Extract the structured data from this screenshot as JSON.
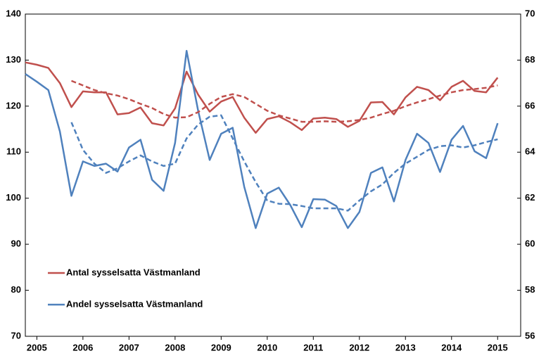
{
  "chart_data": {
    "type": "line",
    "x": [
      2004.75,
      2005,
      2005.25,
      2005.5,
      2005.75,
      2006,
      2006.25,
      2006.5,
      2006.75,
      2007,
      2007.25,
      2007.5,
      2007.75,
      2008,
      2008.25,
      2008.5,
      2008.75,
      2009,
      2009.25,
      2009.5,
      2009.75,
      2010,
      2010.25,
      2010.5,
      2010.75,
      2011,
      2011.25,
      2011.5,
      2011.75,
      2012,
      2012.25,
      2012.5,
      2012.75,
      2013,
      2013.25,
      2013.5,
      2013.75,
      2014,
      2014.25,
      2014.5,
      2014.75,
      2015
    ],
    "xlim": [
      2004.75,
      2015.5
    ],
    "xticks": [
      2005,
      2006,
      2007,
      2008,
      2009,
      2010,
      2011,
      2012,
      2013,
      2014,
      2015
    ],
    "ylim": [
      70,
      140
    ],
    "yticks": [
      70,
      80,
      90,
      100,
      110,
      120,
      130,
      140
    ],
    "y2lim": [
      56,
      70
    ],
    "y2ticks": [
      56,
      58,
      60,
      62,
      64,
      66,
      68,
      70
    ],
    "series": [
      {
        "name": "Antal sysselsatta Västmanland",
        "color": "#c0504d",
        "dashed": false,
        "values": [
          129.5,
          129,
          128.3,
          125,
          119.8,
          123.2,
          123,
          123,
          118.2,
          118.5,
          119.7,
          116.3,
          115.8,
          119.5,
          127.5,
          122.5,
          118.8,
          121,
          122,
          117.5,
          114.2,
          117.2,
          117.8,
          116.5,
          114.8,
          117.3,
          117.5,
          117.2,
          115.5,
          116.8,
          120.8,
          120.9,
          118.2,
          121.9,
          124.2,
          123.5,
          121.3,
          124.2,
          125.5,
          123.3,
          123,
          126.2
        ]
      },
      {
        "name": "Andel sysselsatta Västmanland",
        "color": "#4f81bd",
        "dashed": false,
        "axis": "y2",
        "values": [
          67.4,
          67.06,
          66.7,
          64.9,
          62.1,
          63.6,
          63.4,
          63.5,
          63.16,
          64.2,
          64.54,
          62.8,
          62.32,
          64.4,
          68.4,
          65.8,
          63.66,
          64.8,
          65.06,
          62.5,
          60.7,
          62.2,
          62.46,
          61.7,
          60.74,
          61.96,
          61.94,
          61.66,
          60.7,
          61.4,
          63.1,
          63.34,
          61.86,
          63.66,
          64.8,
          64.4,
          63.14,
          64.54,
          65.14,
          64.04,
          63.74,
          65.26
        ]
      },
      {
        "color": "#c0504d",
        "dashed": true,
        "values": [
          null,
          null,
          null,
          null,
          125.5,
          124.5,
          123.5,
          122.8,
          122.3,
          121.5,
          120.5,
          119.6,
          118.3,
          117.5,
          117.6,
          118.7,
          120.5,
          122,
          122.6,
          122,
          120.5,
          119,
          118,
          117.3,
          116.6,
          116.6,
          116.7,
          116.6,
          116.7,
          117,
          117.5,
          118.3,
          119,
          120,
          120.8,
          121.5,
          122.3,
          123,
          123.5,
          123.7,
          124,
          124.5
        ]
      },
      {
        "color": "#4f81bd",
        "dashed": true,
        "axis": "y2",
        "values": [
          null,
          null,
          null,
          null,
          65.3,
          64.1,
          63.5,
          63.1,
          63.3,
          63.6,
          63.86,
          63.6,
          63.4,
          63.5,
          64.6,
          65.2,
          65.54,
          65.6,
          64.6,
          63.6,
          62.7,
          61.9,
          61.76,
          61.74,
          61.66,
          61.56,
          61.56,
          61.56,
          61.46,
          61.9,
          62.3,
          62.6,
          63.1,
          63.5,
          63.8,
          64.1,
          64.26,
          64.3,
          64.2,
          64.3,
          64.44,
          64.56
        ]
      }
    ]
  }
}
